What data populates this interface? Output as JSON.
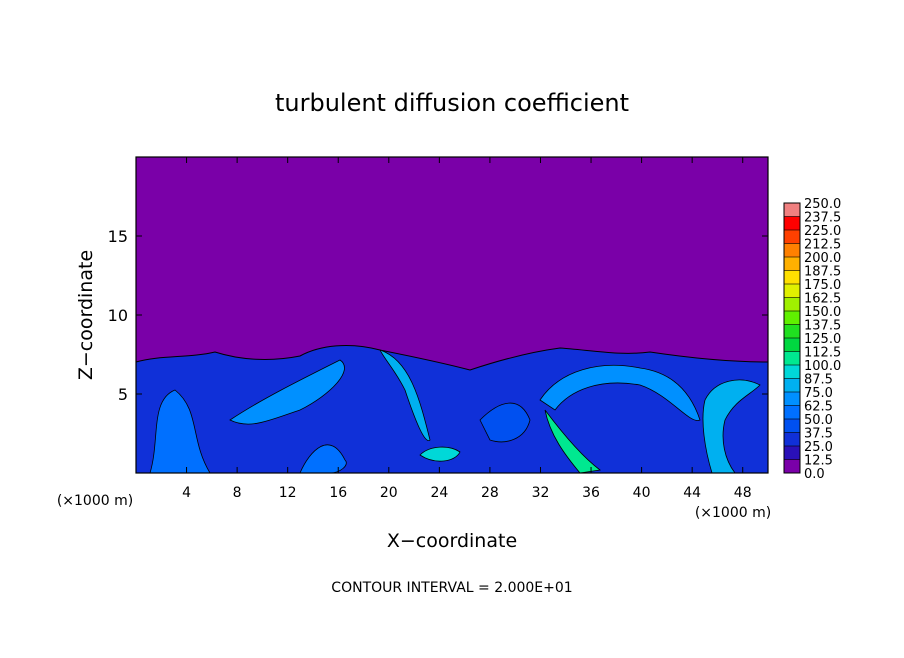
{
  "chart_data": {
    "type": "contour",
    "title": "turbulent diffusion coefficient",
    "xlabel": "X−coordinate",
    "ylabel": "Z−coordinate",
    "x_unit": "(×1000 m)",
    "footnote": "CONTOUR INTERVAL = 2.000E+01",
    "xlim": [
      0,
      50
    ],
    "xticks": [
      4,
      8,
      12,
      16,
      20,
      24,
      28,
      32,
      36,
      40,
      44,
      48
    ],
    "ylim": [
      0,
      20
    ],
    "yticks": [
      5,
      10,
      15
    ],
    "colorbar": {
      "levels": [
        {
          "value": 0,
          "label": "0.0"
        },
        12.5,
        {
          "value": 25,
          "label": "25.0"
        },
        37.5,
        {
          "value": 50,
          "label": "50.0"
        },
        62.5,
        {
          "value": 75,
          "label": "75.0"
        },
        87.5,
        {
          "value": 100,
          "label": "100.0"
        },
        112.5,
        {
          "value": 125,
          "label": "125.0"
        },
        137.5,
        {
          "value": 150,
          "label": "150.0"
        },
        162.5,
        {
          "value": 175,
          "label": "175.0"
        },
        187.5,
        {
          "value": 200,
          "label": "200.0"
        },
        212.5,
        {
          "value": 225,
          "label": "225.0"
        },
        237.5,
        {
          "value": 250,
          "label": "250.0"
        }
      ],
      "colors": [
        "#7a00a8",
        "#2a10b8",
        "#1030d8",
        "#0050f0",
        "#0070ff",
        "#0090ff",
        "#00b0f0",
        "#00d8d8",
        "#00e890",
        "#00d840",
        "#20e020",
        "#60f000",
        "#a0f000",
        "#e0f000",
        "#ffe000",
        "#ffb000",
        "#ff8000",
        "#ff4000",
        "#ff0000",
        "#f08080"
      ]
    }
  }
}
